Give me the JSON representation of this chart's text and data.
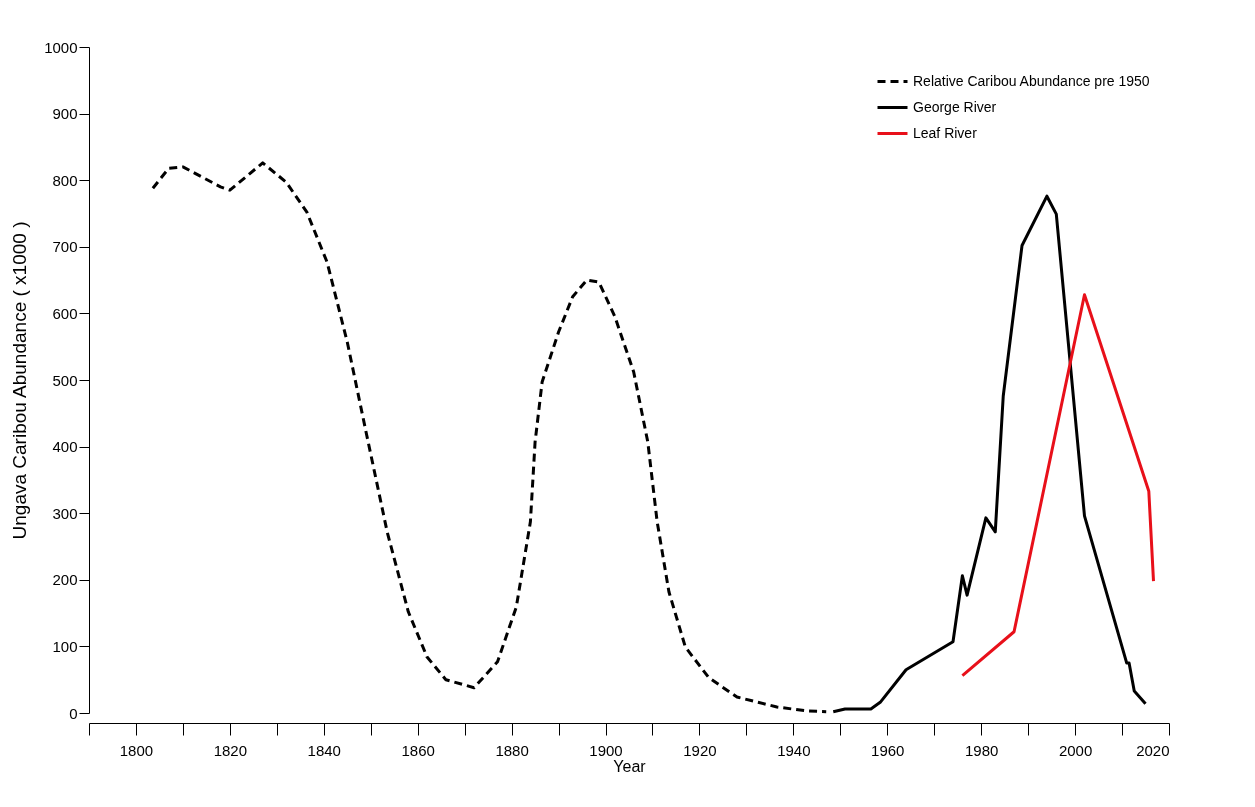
{
  "chart_data": {
    "type": "line",
    "xlabel": "Year",
    "ylabel": "Ungava Caribou Abundance ( x1000 )",
    "xlim": [
      1790,
      2020
    ],
    "xticks": [
      {
        "value": 1790,
        "label": null
      },
      1800,
      {
        "value": 1810,
        "label": null
      },
      1820,
      {
        "value": 1830,
        "label": null
      },
      1840,
      {
        "value": 1850,
        "label": null
      },
      1860,
      {
        "value": 1870,
        "label": null
      },
      1880,
      {
        "value": 1890,
        "label": null
      },
      1900,
      {
        "value": 1910,
        "label": null
      },
      1920,
      {
        "value": 1930,
        "label": null
      },
      1940,
      {
        "value": 1950,
        "label": null
      },
      1960,
      {
        "value": 1970,
        "label": null
      },
      1980,
      {
        "value": 1990,
        "label": null
      },
      2000,
      {
        "value": 2010,
        "label": null
      },
      2020
    ],
    "ylim": [
      0,
      1000
    ],
    "yticks": [
      0,
      100,
      200,
      300,
      400,
      500,
      600,
      700,
      800,
      900,
      1000
    ],
    "grid": false,
    "legend": "top right",
    "marker": "none",
    "series": [
      {
        "name": "Relative Caribou Abundance pre 1950",
        "color": "#000000",
        "line_style": "dashed",
        "x": [
          1803.6,
          1807,
          1810,
          1818,
          1820,
          1827,
          1832,
          1836.4,
          1840.7,
          1845,
          1849,
          1853.5,
          1858,
          1862,
          1866,
          1872,
          1877,
          1881,
          1884,
          1885,
          1886.5,
          1890,
          1893,
          1896,
          1898.6,
          1902,
          1906,
          1909,
          1911,
          1913.5,
          1917,
          1922,
          1928,
          1936.5,
          1943,
          1947
        ],
        "values": [
          788,
          818,
          820,
          790,
          785,
          826,
          797,
          752,
          677,
          557,
          422,
          272,
          152,
          84,
          50,
          38,
          77,
          159,
          287,
          407,
          497,
          572,
          625,
          650,
          647,
          595,
          512,
          407,
          287,
          182,
          99,
          53,
          24,
          9,
          3,
          2
        ]
      },
      {
        "name": "George River",
        "color": "#000000",
        "line_style": "solid",
        "x": [
          1948.5,
          1951,
          1956.5,
          1958.5,
          1964,
          1974,
          1976,
          1977,
          1981,
          1983,
          1984.7,
          1988.7,
          1994,
          1996,
          2002,
          2011,
          2011.5,
          2012.6,
          2015
        ],
        "values": [
          2,
          6,
          6,
          16,
          65,
          107,
          206,
          177,
          293,
          272,
          476,
          702,
          776,
          749,
          296,
          75,
          75,
          33,
          14
        ]
      },
      {
        "name": "Leaf River",
        "color": "#e8101a",
        "line_style": "solid",
        "x": [
          1976,
          1987,
          2002,
          2015.7,
          2016.7
        ],
        "values": [
          56,
          122,
          628,
          333,
          198
        ]
      }
    ]
  }
}
